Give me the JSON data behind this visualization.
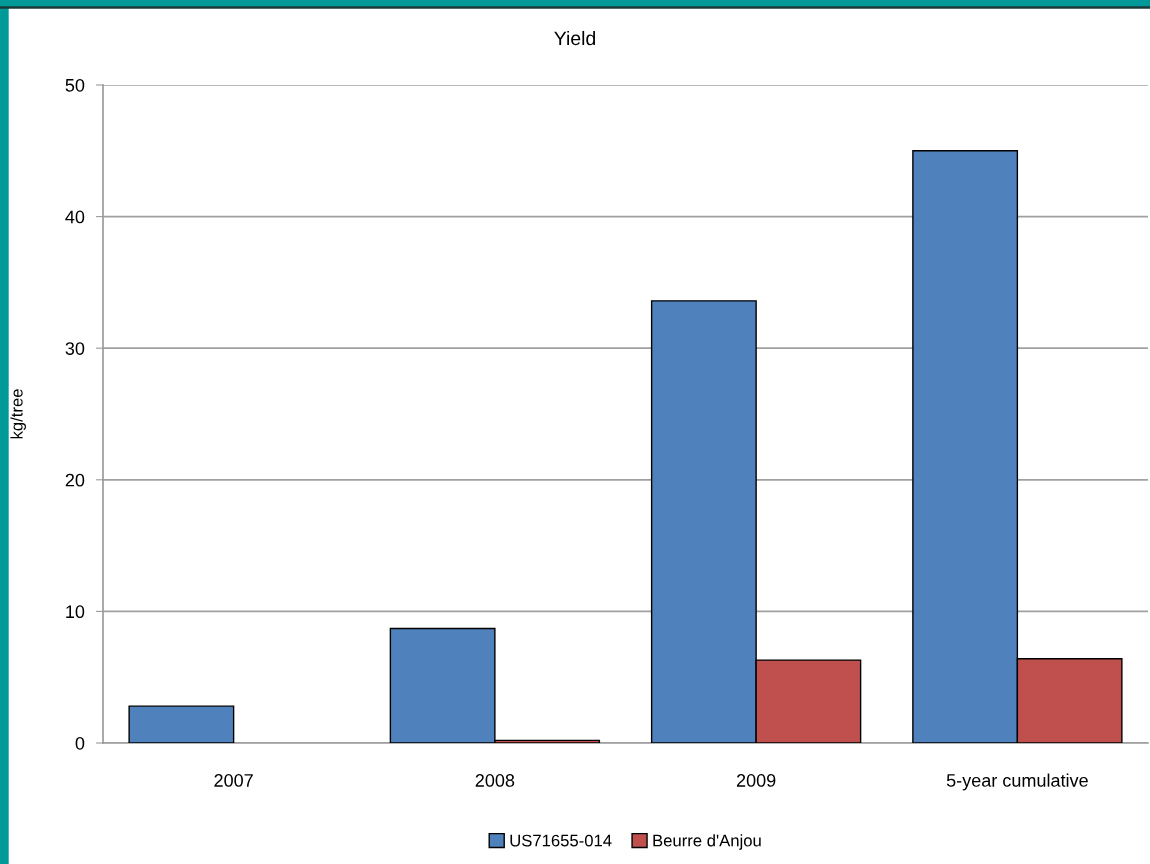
{
  "chart_data": {
    "type": "bar",
    "title": "Yield",
    "ylabel": "kg/tree",
    "categories": [
      "2007",
      "2008",
      "2009",
      "5-year cumulative"
    ],
    "series": [
      {
        "name": "US71655-014",
        "color": "#4f81bd",
        "values": [
          2.8,
          8.7,
          33.6,
          45.0
        ]
      },
      {
        "name": "Beurre d'Anjou",
        "color": "#c0504d",
        "values": [
          null,
          0.2,
          6.3,
          6.4
        ]
      }
    ],
    "ylim": [
      0,
      50
    ],
    "yticks": [
      0,
      10,
      20,
      30,
      40,
      50
    ],
    "grid": "y",
    "legend": "bottom"
  }
}
